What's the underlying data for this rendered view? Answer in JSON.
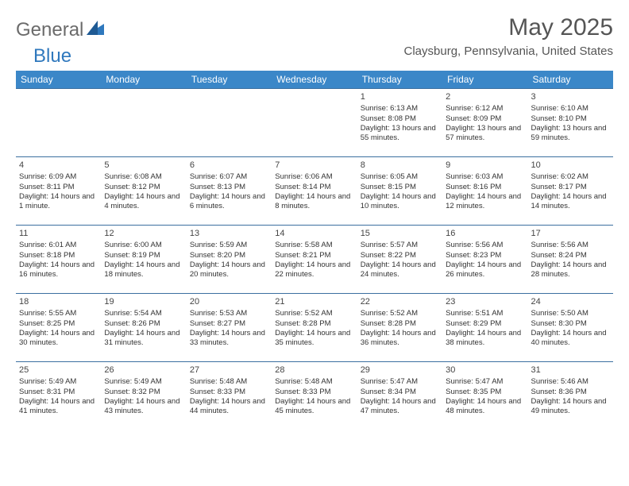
{
  "logo": {
    "general": "General",
    "blue": "Blue"
  },
  "title": "May 2025",
  "location": "Claysburg, Pennsylvania, United States",
  "colors": {
    "header_bg": "#3b87c8",
    "header_text": "#ffffff",
    "cell_border": "#3b6fa0",
    "text": "#333333",
    "logo_gray": "#6b6b6b",
    "logo_blue": "#2f78bd"
  },
  "daysOfWeek": [
    "Sunday",
    "Monday",
    "Tuesday",
    "Wednesday",
    "Thursday",
    "Friday",
    "Saturday"
  ],
  "weeks": [
    [
      null,
      null,
      null,
      null,
      {
        "n": "1",
        "sr": "6:13 AM",
        "ss": "8:08 PM",
        "dl": "13 hours and 55 minutes."
      },
      {
        "n": "2",
        "sr": "6:12 AM",
        "ss": "8:09 PM",
        "dl": "13 hours and 57 minutes."
      },
      {
        "n": "3",
        "sr": "6:10 AM",
        "ss": "8:10 PM",
        "dl": "13 hours and 59 minutes."
      }
    ],
    [
      {
        "n": "4",
        "sr": "6:09 AM",
        "ss": "8:11 PM",
        "dl": "14 hours and 1 minute."
      },
      {
        "n": "5",
        "sr": "6:08 AM",
        "ss": "8:12 PM",
        "dl": "14 hours and 4 minutes."
      },
      {
        "n": "6",
        "sr": "6:07 AM",
        "ss": "8:13 PM",
        "dl": "14 hours and 6 minutes."
      },
      {
        "n": "7",
        "sr": "6:06 AM",
        "ss": "8:14 PM",
        "dl": "14 hours and 8 minutes."
      },
      {
        "n": "8",
        "sr": "6:05 AM",
        "ss": "8:15 PM",
        "dl": "14 hours and 10 minutes."
      },
      {
        "n": "9",
        "sr": "6:03 AM",
        "ss": "8:16 PM",
        "dl": "14 hours and 12 minutes."
      },
      {
        "n": "10",
        "sr": "6:02 AM",
        "ss": "8:17 PM",
        "dl": "14 hours and 14 minutes."
      }
    ],
    [
      {
        "n": "11",
        "sr": "6:01 AM",
        "ss": "8:18 PM",
        "dl": "14 hours and 16 minutes."
      },
      {
        "n": "12",
        "sr": "6:00 AM",
        "ss": "8:19 PM",
        "dl": "14 hours and 18 minutes."
      },
      {
        "n": "13",
        "sr": "5:59 AM",
        "ss": "8:20 PM",
        "dl": "14 hours and 20 minutes."
      },
      {
        "n": "14",
        "sr": "5:58 AM",
        "ss": "8:21 PM",
        "dl": "14 hours and 22 minutes."
      },
      {
        "n": "15",
        "sr": "5:57 AM",
        "ss": "8:22 PM",
        "dl": "14 hours and 24 minutes."
      },
      {
        "n": "16",
        "sr": "5:56 AM",
        "ss": "8:23 PM",
        "dl": "14 hours and 26 minutes."
      },
      {
        "n": "17",
        "sr": "5:56 AM",
        "ss": "8:24 PM",
        "dl": "14 hours and 28 minutes."
      }
    ],
    [
      {
        "n": "18",
        "sr": "5:55 AM",
        "ss": "8:25 PM",
        "dl": "14 hours and 30 minutes."
      },
      {
        "n": "19",
        "sr": "5:54 AM",
        "ss": "8:26 PM",
        "dl": "14 hours and 31 minutes."
      },
      {
        "n": "20",
        "sr": "5:53 AM",
        "ss": "8:27 PM",
        "dl": "14 hours and 33 minutes."
      },
      {
        "n": "21",
        "sr": "5:52 AM",
        "ss": "8:28 PM",
        "dl": "14 hours and 35 minutes."
      },
      {
        "n": "22",
        "sr": "5:52 AM",
        "ss": "8:28 PM",
        "dl": "14 hours and 36 minutes."
      },
      {
        "n": "23",
        "sr": "5:51 AM",
        "ss": "8:29 PM",
        "dl": "14 hours and 38 minutes."
      },
      {
        "n": "24",
        "sr": "5:50 AM",
        "ss": "8:30 PM",
        "dl": "14 hours and 40 minutes."
      }
    ],
    [
      {
        "n": "25",
        "sr": "5:49 AM",
        "ss": "8:31 PM",
        "dl": "14 hours and 41 minutes."
      },
      {
        "n": "26",
        "sr": "5:49 AM",
        "ss": "8:32 PM",
        "dl": "14 hours and 43 minutes."
      },
      {
        "n": "27",
        "sr": "5:48 AM",
        "ss": "8:33 PM",
        "dl": "14 hours and 44 minutes."
      },
      {
        "n": "28",
        "sr": "5:48 AM",
        "ss": "8:33 PM",
        "dl": "14 hours and 45 minutes."
      },
      {
        "n": "29",
        "sr": "5:47 AM",
        "ss": "8:34 PM",
        "dl": "14 hours and 47 minutes."
      },
      {
        "n": "30",
        "sr": "5:47 AM",
        "ss": "8:35 PM",
        "dl": "14 hours and 48 minutes."
      },
      {
        "n": "31",
        "sr": "5:46 AM",
        "ss": "8:36 PM",
        "dl": "14 hours and 49 minutes."
      }
    ]
  ],
  "labels": {
    "sunrise": "Sunrise:",
    "sunset": "Sunset:",
    "daylight": "Daylight:"
  }
}
